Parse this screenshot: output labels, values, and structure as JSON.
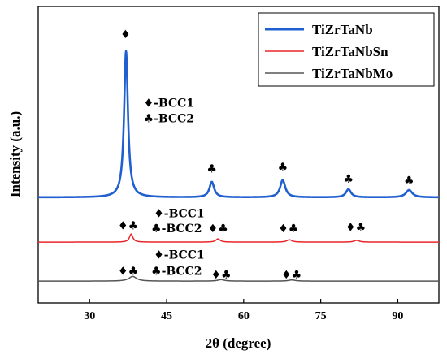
{
  "chart_data": {
    "type": "line",
    "xlabel": "2θ (degree)",
    "ylabel": "Intensity (a.u.)",
    "xlim": [
      20,
      98
    ],
    "xticks": [
      "30",
      "45",
      "60",
      "75",
      "90"
    ],
    "xtick_values": [
      30,
      45,
      60,
      75,
      90
    ],
    "yticks": "none",
    "grid": false,
    "legend_position": "top-right",
    "series": [
      {
        "name": "TiZrTaNb",
        "color": "#1f5fd0",
        "baseline": 0.0,
        "peaks": [
          {
            "x": 37.1,
            "height": 1.0,
            "width": 0.45
          },
          {
            "x": 53.8,
            "height": 0.105,
            "width": 0.55
          },
          {
            "x": 67.6,
            "height": 0.118,
            "width": 0.6
          },
          {
            "x": 80.4,
            "height": 0.055,
            "width": 0.6
          },
          {
            "x": 92.2,
            "height": 0.05,
            "width": 0.75
          }
        ]
      },
      {
        "name": "TiZrTaNbSn",
        "color": "#e8262a",
        "baseline": -0.306,
        "peaks": [
          {
            "x": 38.1,
            "height": 0.055,
            "width": 0.4
          },
          {
            "x": 55.0,
            "height": 0.022,
            "width": 0.5
          },
          {
            "x": 68.9,
            "height": 0.016,
            "width": 0.6
          },
          {
            "x": 82.0,
            "height": 0.012,
            "width": 0.6
          }
        ]
      },
      {
        "name": "TiZrTaNbMo",
        "color": "#555555",
        "baseline": -0.573,
        "peaks": [
          {
            "x": 38.4,
            "height": 0.032,
            "width": 0.9
          },
          {
            "x": 55.6,
            "height": 0.01,
            "width": 0.8
          },
          {
            "x": 69.4,
            "height": 0.008,
            "width": 0.8
          }
        ]
      }
    ],
    "annotations": [
      {
        "text": "♦",
        "x": 37.0,
        "y": 1.09
      },
      {
        "text": "♦-BCC1",
        "x": 40.5,
        "y": 0.62
      },
      {
        "text": "♣-BCC2",
        "x": 40.5,
        "y": 0.515
      },
      {
        "text": "♣",
        "x": 53.8,
        "y": 0.17
      },
      {
        "text": "♣",
        "x": 67.6,
        "y": 0.18
      },
      {
        "text": "♣",
        "x": 80.4,
        "y": 0.1
      },
      {
        "text": "♣",
        "x": 92.2,
        "y": 0.09
      },
      {
        "text": "♦-BCC1",
        "x": 42.5,
        "y": -0.135
      },
      {
        "text": "♦♣",
        "x": 37.5,
        "y": -0.22
      },
      {
        "text": "♣-BCC2",
        "x": 42.0,
        "y": -0.24
      },
      {
        "text": "♦♣",
        "x": 55.0,
        "y": -0.24
      },
      {
        "text": "♦♣",
        "x": 68.7,
        "y": -0.24
      },
      {
        "text": "♦♣",
        "x": 81.8,
        "y": -0.23
      },
      {
        "text": "♦-BCC1",
        "x": 42.5,
        "y": -0.42
      },
      {
        "text": "♦♣",
        "x": 37.5,
        "y": -0.53
      },
      {
        "text": "♣-BCC2",
        "x": 42.0,
        "y": -0.53
      },
      {
        "text": "♦♣",
        "x": 55.6,
        "y": -0.555
      },
      {
        "text": "♦♣",
        "x": 69.3,
        "y": -0.555
      }
    ]
  }
}
